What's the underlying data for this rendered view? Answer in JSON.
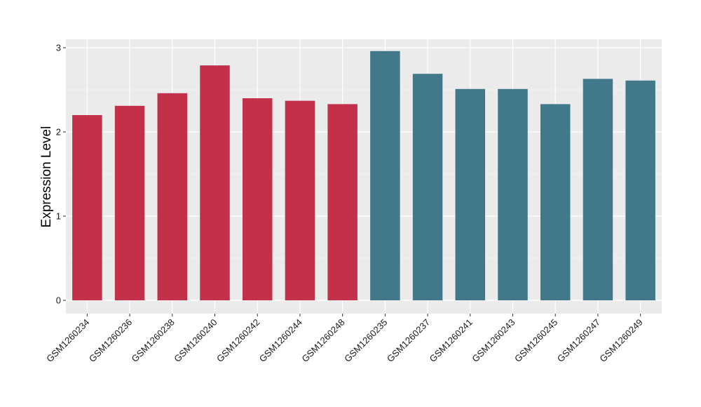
{
  "chart_data": {
    "type": "bar",
    "ylabel": "Expression Level",
    "xlabel": "",
    "ylim": [
      0,
      3.1
    ],
    "yticks": [
      0,
      1,
      2,
      3
    ],
    "grid": true,
    "panel_background": "#EBEBEB",
    "grid_color": "#FFFFFF",
    "categories": [
      "GSM1260234",
      "GSM1260236",
      "GSM1260238",
      "GSM1260240",
      "GSM1260242",
      "GSM1260244",
      "GSM1260248",
      "GSM1260235",
      "GSM1260237",
      "GSM1260241",
      "GSM1260243",
      "GSM1260245",
      "GSM1260247",
      "GSM1260249"
    ],
    "values": [
      2.2,
      2.31,
      2.46,
      2.79,
      2.4,
      2.37,
      2.33,
      2.96,
      2.69,
      2.51,
      2.51,
      2.33,
      2.63,
      2.61
    ],
    "bar_colors": [
      "#C3304A",
      "#C3304A",
      "#C3304A",
      "#C3304A",
      "#C3304A",
      "#C3304A",
      "#C3304A",
      "#41788A",
      "#41788A",
      "#41788A",
      "#41788A",
      "#41788A",
      "#41788A",
      "#41788A"
    ]
  }
}
